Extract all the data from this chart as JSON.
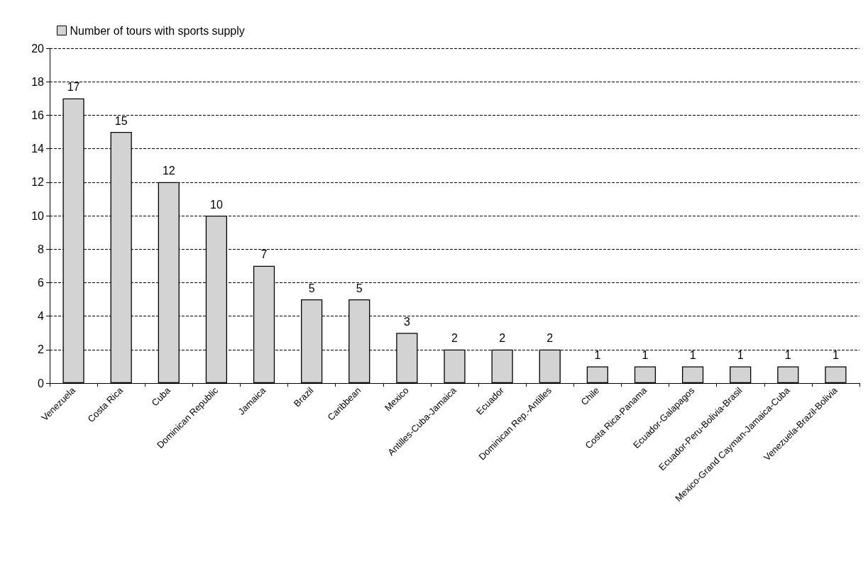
{
  "chart_data": {
    "type": "bar",
    "categories": [
      "Venezuela",
      "Costa Rica",
      "Cuba",
      "Dominican Republic",
      "Jamaica",
      "Brazil",
      "Caribbean",
      "Mexico",
      "Antilles-Cuba-Jamaica",
      "Ecuador",
      "Dominican Rep.-Antilles",
      "Chile",
      "Costa Rica-Panama",
      "Ecuador-Galapagos",
      "Ecuador-Peru-Bolivia-Brasil",
      "Mexico-Grand Cayman-Jamaica-Cuba",
      "Venezuela-Brazil-Bolivia"
    ],
    "series": [
      {
        "name": "Number of tours with sports supply",
        "color": "#d3d3d3",
        "values": [
          17,
          15,
          12,
          10,
          7,
          5,
          5,
          3,
          2,
          2,
          2,
          1,
          1,
          1,
          1,
          1,
          1
        ]
      }
    ],
    "ylim": [
      0,
      20
    ],
    "yticks": [
      0,
      2,
      4,
      6,
      8,
      10,
      12,
      14,
      16,
      18,
      20
    ],
    "grid": "y",
    "legend": "top left",
    "data_labels": true
  }
}
